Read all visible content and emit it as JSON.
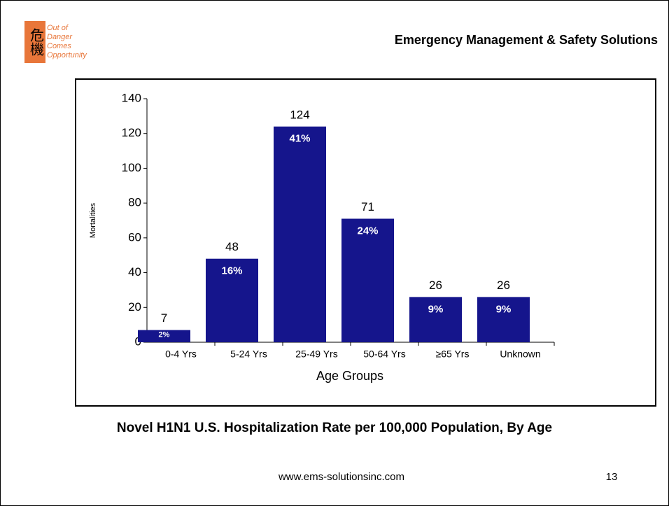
{
  "logo": {
    "mark": "危機",
    "tagline": [
      "Out of",
      "Danger",
      "Comes",
      "Opportunity"
    ]
  },
  "header": {
    "title": "Emergency Management & Safety Solutions"
  },
  "chart_data": {
    "type": "bar",
    "categories": [
      "0-4 Yrs",
      "5-24 Yrs",
      "25-49 Yrs",
      "50-64 Yrs",
      "≥65  Yrs",
      "Unknown"
    ],
    "values": [
      7,
      48,
      124,
      71,
      26,
      26
    ],
    "share_labels": [
      "2%",
      "16%",
      "41%",
      "24%",
      "9%",
      "9%"
    ],
    "color": "#15158c",
    "ylabel": "Mortalities",
    "xlabel": "Age Groups",
    "ylim": [
      0,
      140
    ],
    "yticks": [
      0,
      20,
      40,
      60,
      80,
      100,
      120,
      140
    ]
  },
  "caption": "Novel H1N1 U.S. Hospitalization Rate per 100,000 Population, By Age",
  "footer": {
    "url": "www.ems-solutionsinc.com",
    "page": "13"
  }
}
